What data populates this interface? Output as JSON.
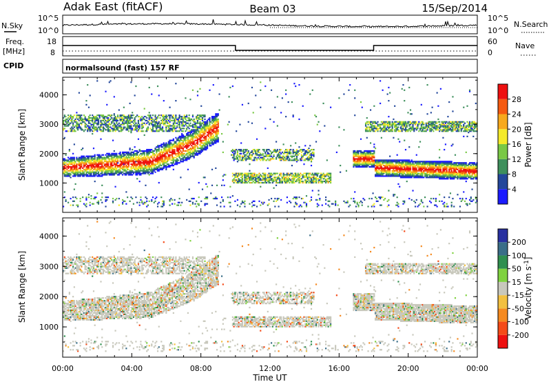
{
  "header": {
    "station": "Adak East (fitACF)",
    "beam": "Beam 03",
    "date": "15/Sep/2014"
  },
  "noise_panel": {
    "left_label": "N.Sky",
    "right_label": "N.Search",
    "left_ticks": [
      "10^5",
      "10^0"
    ],
    "right_ticks": [
      "10^5",
      "10^0"
    ]
  },
  "freq_panel": {
    "left_label_1": "Freq.",
    "left_label_2": "[MHz]",
    "right_label": "Nave",
    "left_ticks": [
      "18",
      "8"
    ],
    "right_ticks": [
      "60",
      "0"
    ],
    "cpid_label": "CPID",
    "cpid_text": "normalsound (fast) 157 RF"
  },
  "chart_data": [
    {
      "type": "heatmap",
      "name": "power",
      "ylabel": "Slant Range [km]",
      "xlabel": "Time UT",
      "y_ticks": [
        "4000",
        "3000",
        "2000",
        "1000"
      ],
      "x_ticks": [
        "00:00",
        "04:00",
        "08:00",
        "12:00",
        "16:00",
        "20:00",
        "00:00"
      ],
      "ylim": [
        0,
        4600
      ],
      "colorbar_label": "Power [dB]",
      "colorbar_ticks": [
        "28",
        "24",
        "20",
        "16",
        "12",
        "8",
        "4"
      ],
      "colors": [
        "#1b1bff",
        "#23479b",
        "#3e8f5c",
        "#79c845",
        "#f5ea2a",
        "#f7a91d",
        "#f55a10",
        "#ee1010"
      ]
    },
    {
      "type": "heatmap",
      "name": "velocity",
      "ylabel": "Slant Range [km]",
      "xlabel": "Time UT",
      "y_ticks": [
        "4000",
        "3000",
        "2000",
        "1000"
      ],
      "x_ticks": [
        "00:00",
        "04:00",
        "08:00",
        "12:00",
        "16:00",
        "20:00",
        "00:00"
      ],
      "ylim": [
        0,
        4600
      ],
      "colorbar_label": "Velocity [m s",
      "colorbar_sup": "-1",
      "colorbar_label_end": "]",
      "colorbar_ticks": [
        "200",
        "100",
        "50",
        "15",
        "-15",
        "-50",
        "-100",
        "-200"
      ],
      "colors": [
        "#2830a0",
        "#3a6e88",
        "#2f8f4f",
        "#7fd23f",
        "#c8c8bc",
        "#f2c040",
        "#f58a20",
        "#f54b18",
        "#ee1010"
      ]
    }
  ]
}
